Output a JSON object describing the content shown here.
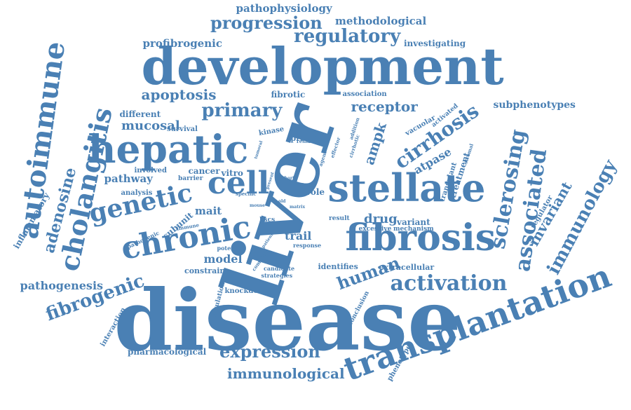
{
  "style": {
    "word_color": "#4a80b4",
    "background": "#ffffff"
  },
  "words": [
    {
      "text": "disease",
      "weight": 100
    },
    {
      "text": "liver",
      "weight": 96
    },
    {
      "text": "development",
      "weight": 85
    },
    {
      "text": "hepatic",
      "weight": 66
    },
    {
      "text": "stellate",
      "weight": 64
    },
    {
      "text": "fibrosis",
      "weight": 60
    },
    {
      "text": "transplantation",
      "weight": 56
    },
    {
      "text": "chronic",
      "weight": 52
    },
    {
      "text": "cell",
      "weight": 52
    },
    {
      "text": "autoimmune",
      "weight": 46
    },
    {
      "text": "cholangitis",
      "weight": 44
    },
    {
      "text": "genetic",
      "weight": 40
    },
    {
      "text": "sclerosing",
      "weight": 38
    },
    {
      "text": "associated",
      "weight": 36
    },
    {
      "text": "activation",
      "weight": 34
    },
    {
      "text": "cirrhosis",
      "weight": 32
    },
    {
      "text": "immunology",
      "weight": 32
    },
    {
      "text": "regulatory",
      "weight": 28
    },
    {
      "text": "primary",
      "weight": 28
    },
    {
      "text": "fibrogenic",
      "weight": 28
    },
    {
      "text": "expression",
      "weight": 26
    },
    {
      "text": "progression",
      "weight": 26
    },
    {
      "text": "human",
      "weight": 26
    },
    {
      "text": "adenosine",
      "weight": 26
    },
    {
      "text": "invariant",
      "weight": 24
    },
    {
      "text": "apoptosis",
      "weight": 22
    },
    {
      "text": "ampk",
      "weight": 22
    },
    {
      "text": "receptor",
      "weight": 22
    },
    {
      "text": "immunological",
      "weight": 22
    },
    {
      "text": "drug",
      "weight": 20
    },
    {
      "text": "mucosal",
      "weight": 18
    },
    {
      "text": "pathogenesis",
      "weight": 18
    },
    {
      "text": "atpase",
      "weight": 18
    },
    {
      "text": "trail",
      "weight": 18
    },
    {
      "text": "model",
      "weight": 18
    },
    {
      "text": "pathway",
      "weight": 16
    },
    {
      "text": "mait",
      "weight": 16
    },
    {
      "text": "profibrogenic",
      "weight": 16
    },
    {
      "text": "methodological",
      "weight": 16
    },
    {
      "text": "pathophysiology",
      "weight": 16
    },
    {
      "text": "inflammatory",
      "weight": 14
    },
    {
      "text": "subphenotypes",
      "weight": 14
    },
    {
      "text": "treatment",
      "weight": 14
    },
    {
      "text": "cancer",
      "weight": 13
    },
    {
      "text": "variant",
      "weight": 13
    },
    {
      "text": "fibrotic",
      "weight": 12
    },
    {
      "text": "investigating",
      "weight": 12
    },
    {
      "text": "different",
      "weight": 12
    },
    {
      "text": "role",
      "weight": 12
    },
    {
      "text": "vitro",
      "weight": 12
    },
    {
      "text": "subunit",
      "weight": 12
    },
    {
      "text": "pharmacological",
      "weight": 12
    },
    {
      "text": "protein",
      "weight": 11
    },
    {
      "text": "constrain",
      "weight": 11
    },
    {
      "text": "extracellular",
      "weight": 11
    },
    {
      "text": "identifies",
      "weight": 11
    },
    {
      "text": "regulator",
      "weight": 11
    },
    {
      "text": "phenotype",
      "weight": 11
    },
    {
      "text": "transplant",
      "weight": 10
    },
    {
      "text": "interaction",
      "weight": 10
    },
    {
      "text": "association",
      "weight": 10
    },
    {
      "text": "knockdown",
      "weight": 10
    },
    {
      "text": "survival",
      "weight": 10
    },
    {
      "text": "analysis",
      "weight": 10
    },
    {
      "text": "involved",
      "weight": 10
    },
    {
      "text": "kinase",
      "weight": 10
    },
    {
      "text": "vacuolar",
      "weight": 10
    },
    {
      "text": "barrier",
      "weight": 9
    },
    {
      "text": "activated",
      "weight": 9
    },
    {
      "text": "hscs",
      "weight": 9
    },
    {
      "text": "result",
      "weight": 9
    },
    {
      "text": "excessive",
      "weight": 9
    },
    {
      "text": "mechanism",
      "weight": 9
    },
    {
      "text": "conclusion",
      "weight": 9
    },
    {
      "text": "regulation",
      "weight": 9
    },
    {
      "text": "candidate",
      "weight": 8
    },
    {
      "text": "strategies",
      "weight": 8
    },
    {
      "text": "response",
      "weight": 8
    },
    {
      "text": "potential",
      "weight": 8
    },
    {
      "text": "pathogenic",
      "weight": 8
    },
    {
      "text": "immune",
      "weight": 7
    },
    {
      "text": "specific",
      "weight": 7
    },
    {
      "text": "complex",
      "weight": 7
    },
    {
      "text": "agent",
      "weight": 7
    },
    {
      "text": "addition",
      "weight": 7
    },
    {
      "text": "cirrhotic",
      "weight": 7
    },
    {
      "text": "effector",
      "weight": 7
    },
    {
      "text": "resident",
      "weight": 7
    },
    {
      "text": "stromal",
      "weight": 7
    },
    {
      "text": "cohort",
      "weight": 6
    },
    {
      "text": "present",
      "weight": 6
    },
    {
      "text": "mouse",
      "weight": 6
    },
    {
      "text": "novel",
      "weight": 6
    },
    {
      "text": "axis",
      "weight": 6
    },
    {
      "text": "matrix",
      "weight": 6
    },
    {
      "text": "patient",
      "weight": 6
    },
    {
      "text": "old",
      "weight": 6
    },
    {
      "text": "tumoral",
      "weight": 6
    }
  ]
}
